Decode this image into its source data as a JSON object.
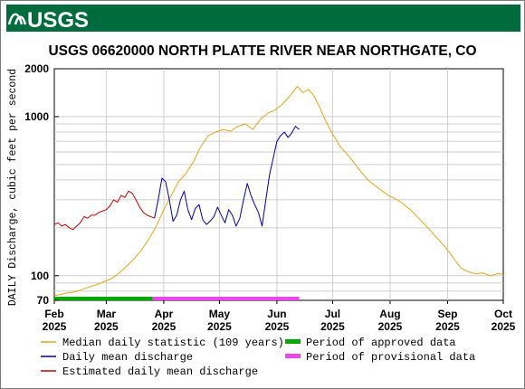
{
  "header": {
    "logo_text": "USGS",
    "bar_color": "#006b3c"
  },
  "chart_data": {
    "type": "line",
    "title": "USGS 06620000 NORTH PLATTE RIVER NEAR NORTHGATE, CO",
    "ylabel": "DAILY Discharge, cubic feet per second",
    "y_scale": "log",
    "ylim": [
      70,
      2000
    ],
    "y_ticks": [
      {
        "value": 70,
        "label": "70"
      },
      {
        "value": 100,
        "label": "100"
      },
      {
        "value": 1000,
        "label": "1000"
      },
      {
        "value": 2000,
        "label": "2000"
      }
    ],
    "x_range": [
      "2025-02-01",
      "2025-10-01"
    ],
    "x_ticks": [
      {
        "date": "2025-02-01",
        "month": "Feb",
        "year": "2025"
      },
      {
        "date": "2025-03-01",
        "month": "Mar",
        "year": "2025"
      },
      {
        "date": "2025-04-01",
        "month": "Apr",
        "year": "2025"
      },
      {
        "date": "2025-05-01",
        "month": "May",
        "year": "2025"
      },
      {
        "date": "2025-06-01",
        "month": "Jun",
        "year": "2025"
      },
      {
        "date": "2025-07-01",
        "month": "Jul",
        "year": "2025"
      },
      {
        "date": "2025-08-01",
        "month": "Aug",
        "year": "2025"
      },
      {
        "date": "2025-09-01",
        "month": "Sep",
        "year": "2025"
      },
      {
        "date": "2025-10-01",
        "month": "Oct",
        "year": "2025"
      }
    ],
    "grid": true,
    "series": [
      {
        "name": "Median daily statistic (109 years)",
        "color": "#e8a317",
        "points": [
          [
            "2025-02-01",
            75
          ],
          [
            "2025-02-04",
            76
          ],
          [
            "2025-02-08",
            78
          ],
          [
            "2025-02-12",
            79
          ],
          [
            "2025-02-16",
            82
          ],
          [
            "2025-02-20",
            85
          ],
          [
            "2025-02-24",
            88
          ],
          [
            "2025-02-28",
            92
          ],
          [
            "2025-03-04",
            96
          ],
          [
            "2025-03-08",
            104
          ],
          [
            "2025-03-12",
            115
          ],
          [
            "2025-03-16",
            128
          ],
          [
            "2025-03-20",
            145
          ],
          [
            "2025-03-24",
            170
          ],
          [
            "2025-03-28",
            205
          ],
          [
            "2025-04-01",
            260
          ],
          [
            "2025-04-05",
            320
          ],
          [
            "2025-04-09",
            390
          ],
          [
            "2025-04-13",
            440
          ],
          [
            "2025-04-17",
            520
          ],
          [
            "2025-04-21",
            650
          ],
          [
            "2025-04-25",
            760
          ],
          [
            "2025-04-29",
            800
          ],
          [
            "2025-05-03",
            830
          ],
          [
            "2025-05-07",
            810
          ],
          [
            "2025-05-11",
            870
          ],
          [
            "2025-05-15",
            900
          ],
          [
            "2025-05-19",
            830
          ],
          [
            "2025-05-23",
            960
          ],
          [
            "2025-05-27",
            1050
          ],
          [
            "2025-05-31",
            1100
          ],
          [
            "2025-06-04",
            1200
          ],
          [
            "2025-06-08",
            1350
          ],
          [
            "2025-06-12",
            1550
          ],
          [
            "2025-06-15",
            1420
          ],
          [
            "2025-06-18",
            1480
          ],
          [
            "2025-06-21",
            1350
          ],
          [
            "2025-06-24",
            1150
          ],
          [
            "2025-06-27",
            950
          ],
          [
            "2025-07-01",
            780
          ],
          [
            "2025-07-05",
            650
          ],
          [
            "2025-07-10",
            560
          ],
          [
            "2025-07-15",
            470
          ],
          [
            "2025-07-20",
            400
          ],
          [
            "2025-07-25",
            360
          ],
          [
            "2025-07-31",
            320
          ],
          [
            "2025-08-06",
            295
          ],
          [
            "2025-08-12",
            260
          ],
          [
            "2025-08-18",
            220
          ],
          [
            "2025-08-24",
            185
          ],
          [
            "2025-08-30",
            155
          ],
          [
            "2025-09-04",
            130
          ],
          [
            "2025-09-08",
            112
          ],
          [
            "2025-09-12",
            106
          ],
          [
            "2025-09-16",
            103
          ],
          [
            "2025-09-20",
            104
          ],
          [
            "2025-09-24",
            100
          ],
          [
            "2025-09-28",
            103
          ],
          [
            "2025-10-01",
            102
          ]
        ]
      },
      {
        "name": "Daily mean discharge",
        "color": "#0000aa",
        "points": [
          [
            "2025-03-27",
            230
          ],
          [
            "2025-03-29",
            300
          ],
          [
            "2025-03-31",
            410
          ],
          [
            "2025-04-02",
            390
          ],
          [
            "2025-04-04",
            300
          ],
          [
            "2025-04-06",
            220
          ],
          [
            "2025-04-08",
            240
          ],
          [
            "2025-04-10",
            300
          ],
          [
            "2025-04-12",
            340
          ],
          [
            "2025-04-14",
            260
          ],
          [
            "2025-04-16",
            225
          ],
          [
            "2025-04-18",
            265
          ],
          [
            "2025-04-20",
            280
          ],
          [
            "2025-04-22",
            225
          ],
          [
            "2025-04-24",
            210
          ],
          [
            "2025-04-26",
            220
          ],
          [
            "2025-04-28",
            235
          ],
          [
            "2025-04-30",
            270
          ],
          [
            "2025-05-02",
            240
          ],
          [
            "2025-05-04",
            215
          ],
          [
            "2025-05-06",
            260
          ],
          [
            "2025-05-08",
            240
          ],
          [
            "2025-05-10",
            205
          ],
          [
            "2025-05-12",
            230
          ],
          [
            "2025-05-14",
            300
          ],
          [
            "2025-05-16",
            380
          ],
          [
            "2025-05-18",
            320
          ],
          [
            "2025-05-20",
            280
          ],
          [
            "2025-05-22",
            250
          ],
          [
            "2025-05-24",
            205
          ],
          [
            "2025-05-26",
            300
          ],
          [
            "2025-05-28",
            430
          ],
          [
            "2025-05-30",
            550
          ],
          [
            "2025-06-01",
            700
          ],
          [
            "2025-06-03",
            760
          ],
          [
            "2025-06-05",
            800
          ],
          [
            "2025-06-07",
            740
          ],
          [
            "2025-06-09",
            790
          ],
          [
            "2025-06-11",
            870
          ],
          [
            "2025-06-13",
            830
          ]
        ]
      },
      {
        "name": "Estimated daily mean discharge",
        "color": "#cc0000",
        "points": [
          [
            "2025-02-01",
            210
          ],
          [
            "2025-02-03",
            215
          ],
          [
            "2025-02-05",
            205
          ],
          [
            "2025-02-07",
            210
          ],
          [
            "2025-02-09",
            200
          ],
          [
            "2025-02-11",
            195
          ],
          [
            "2025-02-13",
            205
          ],
          [
            "2025-02-15",
            215
          ],
          [
            "2025-02-17",
            235
          ],
          [
            "2025-02-19",
            230
          ],
          [
            "2025-02-21",
            240
          ],
          [
            "2025-02-23",
            240
          ],
          [
            "2025-02-25",
            250
          ],
          [
            "2025-02-27",
            255
          ],
          [
            "2025-03-01",
            260
          ],
          [
            "2025-03-03",
            275
          ],
          [
            "2025-03-05",
            300
          ],
          [
            "2025-03-07",
            290
          ],
          [
            "2025-03-09",
            320
          ],
          [
            "2025-03-11",
            310
          ],
          [
            "2025-03-13",
            340
          ],
          [
            "2025-03-15",
            330
          ],
          [
            "2025-03-17",
            300
          ],
          [
            "2025-03-19",
            270
          ],
          [
            "2025-03-21",
            250
          ],
          [
            "2025-03-23",
            240
          ],
          [
            "2025-03-25",
            235
          ],
          [
            "2025-03-27",
            230
          ]
        ]
      }
    ],
    "periods": [
      {
        "name": "Period of approved data",
        "color": "#00aa00",
        "start": "2025-02-01",
        "end": "2025-03-26"
      },
      {
        "name": "Period of provisional data",
        "color": "#ee44ee",
        "start": "2025-03-26",
        "end": "2025-06-13"
      }
    ]
  }
}
